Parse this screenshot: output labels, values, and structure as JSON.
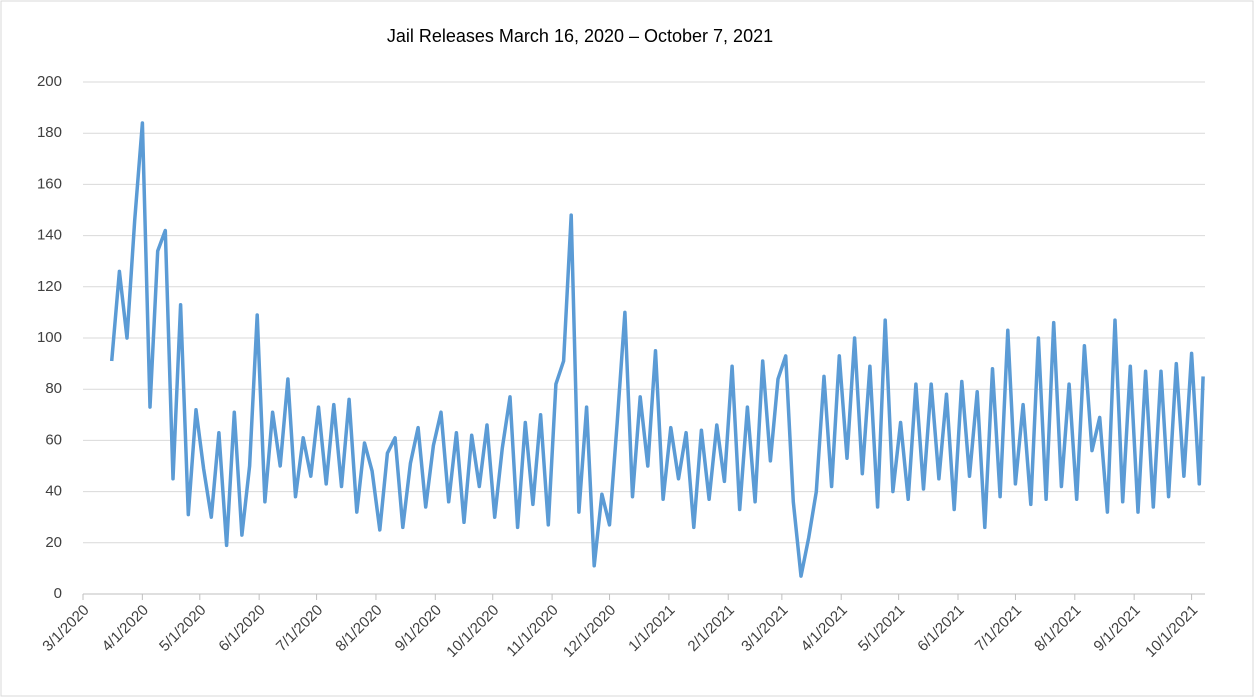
{
  "chart_data": {
    "type": "line",
    "title": "Jail Releases March 16, 2020 – October 7, 2021",
    "x": [
      "2020-03-16",
      "2020-03-20",
      "2020-03-24",
      "2020-03-28",
      "2020-04-01",
      "2020-04-05",
      "2020-04-09",
      "2020-04-13",
      "2020-04-17",
      "2020-04-21",
      "2020-04-25",
      "2020-04-29",
      "2020-05-03",
      "2020-05-07",
      "2020-05-11",
      "2020-05-15",
      "2020-05-19",
      "2020-05-23",
      "2020-05-27",
      "2020-05-31",
      "2020-06-04",
      "2020-06-08",
      "2020-06-12",
      "2020-06-16",
      "2020-06-20",
      "2020-06-24",
      "2020-06-28",
      "2020-07-02",
      "2020-07-06",
      "2020-07-10",
      "2020-07-14",
      "2020-07-18",
      "2020-07-22",
      "2020-07-26",
      "2020-07-30",
      "2020-08-03",
      "2020-08-07",
      "2020-08-11",
      "2020-08-15",
      "2020-08-19",
      "2020-08-23",
      "2020-08-27",
      "2020-08-31",
      "2020-09-04",
      "2020-09-08",
      "2020-09-12",
      "2020-09-16",
      "2020-09-20",
      "2020-09-24",
      "2020-09-28",
      "2020-10-02",
      "2020-10-06",
      "2020-10-10",
      "2020-10-14",
      "2020-10-18",
      "2020-10-22",
      "2020-10-26",
      "2020-10-30",
      "2020-11-03",
      "2020-11-07",
      "2020-11-11",
      "2020-11-15",
      "2020-11-19",
      "2020-11-23",
      "2020-11-27",
      "2020-12-01",
      "2020-12-05",
      "2020-12-09",
      "2020-12-13",
      "2020-12-17",
      "2020-12-21",
      "2020-12-25",
      "2020-12-29",
      "2021-01-02",
      "2021-01-06",
      "2021-01-10",
      "2021-01-14",
      "2021-01-18",
      "2021-01-22",
      "2021-01-26",
      "2021-01-30",
      "2021-02-03",
      "2021-02-07",
      "2021-02-11",
      "2021-02-15",
      "2021-02-19",
      "2021-02-23",
      "2021-02-27",
      "2021-03-03",
      "2021-03-07",
      "2021-03-11",
      "2021-03-15",
      "2021-03-19",
      "2021-03-23",
      "2021-03-27",
      "2021-03-31",
      "2021-04-04",
      "2021-04-08",
      "2021-04-12",
      "2021-04-16",
      "2021-04-20",
      "2021-04-24",
      "2021-04-28",
      "2021-05-02",
      "2021-05-06",
      "2021-05-10",
      "2021-05-14",
      "2021-05-18",
      "2021-05-22",
      "2021-05-26",
      "2021-05-30",
      "2021-06-03",
      "2021-06-07",
      "2021-06-11",
      "2021-06-15",
      "2021-06-19",
      "2021-06-23",
      "2021-06-27",
      "2021-07-01",
      "2021-07-05",
      "2021-07-09",
      "2021-07-13",
      "2021-07-17",
      "2021-07-21",
      "2021-07-25",
      "2021-07-29",
      "2021-08-02",
      "2021-08-06",
      "2021-08-10",
      "2021-08-14",
      "2021-08-18",
      "2021-08-22",
      "2021-08-26",
      "2021-08-30",
      "2021-09-03",
      "2021-09-07",
      "2021-09-11",
      "2021-09-15",
      "2021-09-19",
      "2021-09-23",
      "2021-09-27",
      "2021-10-01",
      "2021-10-05",
      "2021-10-07"
    ],
    "series": [
      {
        "name": "Jail Releases",
        "color": "#5b9bd5",
        "values": [
          91,
          126,
          100,
          146,
          184,
          73,
          134,
          142,
          45,
          113,
          31,
          72,
          49,
          30,
          63,
          19,
          71,
          23,
          50,
          109,
          36,
          71,
          50,
          84,
          38,
          61,
          46,
          73,
          43,
          74,
          42,
          76,
          32,
          59,
          48,
          25,
          55,
          61,
          26,
          51,
          65,
          34,
          58,
          71,
          36,
          63,
          28,
          62,
          42,
          66,
          30,
          57,
          77,
          26,
          67,
          35,
          70,
          27,
          82,
          91,
          148,
          32,
          73,
          11,
          39,
          27,
          67,
          110,
          38,
          77,
          50,
          95,
          37,
          65,
          45,
          63,
          26,
          64,
          37,
          66,
          44,
          89,
          33,
          73,
          36,
          91,
          52,
          84,
          93,
          36,
          7,
          22,
          40,
          85,
          42,
          93,
          53,
          100,
          47,
          89,
          34,
          107,
          40,
          67,
          37,
          82,
          41,
          82,
          45,
          78,
          33,
          83,
          46,
          79,
          26,
          88,
          38,
          103,
          43,
          74,
          35,
          100,
          37,
          106,
          42,
          82,
          37,
          97,
          56,
          69,
          32,
          107,
          36,
          89,
          32,
          87,
          34,
          87,
          38,
          90,
          46,
          94,
          43,
          85
        ]
      }
    ],
    "xlim": [
      "2020-03-01",
      "2021-10-08"
    ],
    "xticks": [
      {
        "value": "2020-03-01",
        "label": "3/1/2020"
      },
      {
        "value": "2020-04-01",
        "label": "4/1/2020"
      },
      {
        "value": "2020-05-01",
        "label": "5/1/2020"
      },
      {
        "value": "2020-06-01",
        "label": "6/1/2020"
      },
      {
        "value": "2020-07-01",
        "label": "7/1/2020"
      },
      {
        "value": "2020-08-01",
        "label": "8/1/2020"
      },
      {
        "value": "2020-09-01",
        "label": "9/1/2020"
      },
      {
        "value": "2020-10-01",
        "label": "10/1/2020"
      },
      {
        "value": "2020-11-01",
        "label": "11/1/2020"
      },
      {
        "value": "2020-12-01",
        "label": "12/1/2020"
      },
      {
        "value": "2021-01-01",
        "label": "1/1/2021"
      },
      {
        "value": "2021-02-01",
        "label": "2/1/2021"
      },
      {
        "value": "2021-03-01",
        "label": "3/1/2021"
      },
      {
        "value": "2021-04-01",
        "label": "4/1/2021"
      },
      {
        "value": "2021-05-01",
        "label": "5/1/2021"
      },
      {
        "value": "2021-06-01",
        "label": "6/1/2021"
      },
      {
        "value": "2021-07-01",
        "label": "7/1/2021"
      },
      {
        "value": "2021-08-01",
        "label": "8/1/2021"
      },
      {
        "value": "2021-09-01",
        "label": "9/1/2021"
      },
      {
        "value": "2021-10-01",
        "label": "10/1/2021"
      }
    ],
    "ylim": [
      0,
      200
    ],
    "yticks": [
      0,
      20,
      40,
      60,
      80,
      100,
      120,
      140,
      160,
      180,
      200
    ],
    "grid": true
  }
}
